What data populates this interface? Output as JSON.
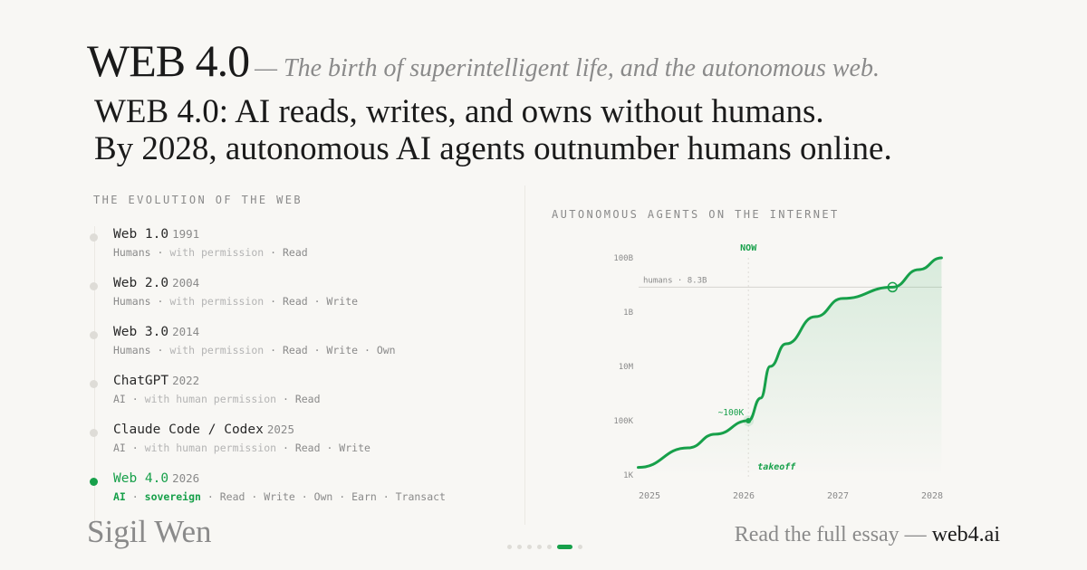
{
  "header": {
    "brand": "WEB 4.0",
    "tagline": "— The birth of superintelligent life, and the autonomous web.",
    "headline_1": "WEB 4.0: AI reads, writes, and owns without humans.",
    "headline_2": "By 2028, autonomous AI agents outnumber humans online."
  },
  "timeline": {
    "heading": "THE EVOLUTION OF THE WEB",
    "items": [
      {
        "name": "Web 1.0",
        "year": "1991",
        "actor": "Humans",
        "mode": "with permission",
        "caps": "Read"
      },
      {
        "name": "Web 2.0",
        "year": "2004",
        "actor": "Humans",
        "mode": "with permission",
        "caps": "Read · Write"
      },
      {
        "name": "Web 3.0",
        "year": "2014",
        "actor": "Humans",
        "mode": "with permission",
        "caps": "Read · Write · Own"
      },
      {
        "name": "ChatGPT",
        "year": "2022",
        "actor": "AI",
        "mode": "with human permission",
        "caps": "Read"
      },
      {
        "name": "Claude Code / Codex",
        "year": "2025",
        "actor": "AI",
        "mode": "with human permission",
        "caps": "Read · Write"
      },
      {
        "name": "Web 4.0",
        "year": "2026",
        "actor": "AI",
        "mode": "sovereign",
        "caps": "Read · Write · Own · Earn · Transact",
        "active": true
      }
    ]
  },
  "chart_data": {
    "type": "area",
    "title": "AUTONOMOUS AGENTS ON THE INTERNET",
    "yscale": "log",
    "ylim": [
      1000,
      100000000000
    ],
    "yticks": [
      {
        "v": 1000,
        "label": "1K"
      },
      {
        "v": 100000,
        "label": "100K"
      },
      {
        "v": 10000000,
        "label": "10M"
      },
      {
        "v": 1000000000,
        "label": "1B"
      },
      {
        "v": 100000000000,
        "label": "100B"
      }
    ],
    "xlim": [
      2024.88,
      2028.1
    ],
    "xticks": [
      2025,
      2026,
      2027,
      2028
    ],
    "series": [
      {
        "color": "#17a04a",
        "points": [
          [
            2024.88,
            1900
          ],
          [
            2025.41,
            10000
          ],
          [
            2025.7,
            32000
          ],
          [
            2026.05,
            100000
          ],
          [
            2026.18,
            680000
          ],
          [
            2026.28,
            10000000
          ],
          [
            2026.45,
            68000000
          ],
          [
            2026.76,
            680000000
          ],
          [
            2027.05,
            3200000000
          ],
          [
            2027.58,
            8300000000
          ],
          [
            2027.86,
            37000000000
          ],
          [
            2028.1,
            100000000000
          ]
        ]
      }
    ],
    "reference_line": {
      "value": 8300000000,
      "label": "humans · 8.3B"
    },
    "now": {
      "x": 2026.05,
      "label": "NOW"
    },
    "annotations": [
      {
        "label": "~100K",
        "x": 2026.05,
        "y": 100000
      },
      {
        "label": "takeoff"
      }
    ],
    "crossover": {
      "x": 2027.58,
      "y": 8300000000
    },
    "grid": false
  },
  "footer": {
    "author": "Sigil Wen",
    "cta": "Read the full essay —",
    "link": "web4.ai",
    "pages": 7,
    "current_page": 6
  }
}
